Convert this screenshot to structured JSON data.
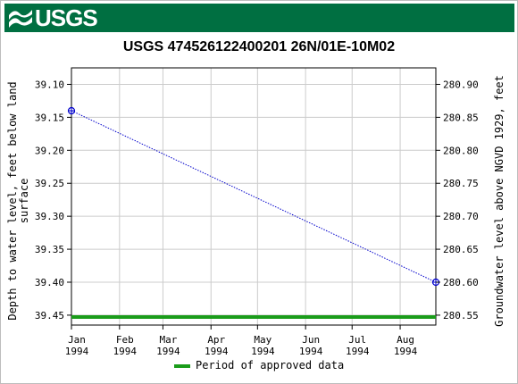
{
  "header": {
    "logo_text": "USGS",
    "brand_color": "#006f41"
  },
  "chart_data": {
    "type": "line",
    "title": "USGS 474526122400201 26N/01E-10M02",
    "ylabel_left": "Depth to water level, feet below land surface",
    "ylabel_left_lines": [
      "Depth to water level, feet below land",
      "surface"
    ],
    "ylabel_right": "Groundwater level above NGVD 1929, feet",
    "y_left_ticks": [
      "39.10",
      "39.15",
      "39.20",
      "39.25",
      "39.30",
      "39.35",
      "39.40",
      "39.45"
    ],
    "y_left_range": [
      39.075,
      39.465
    ],
    "y_left_inverted": true,
    "y_right_ticks": [
      "280.90",
      "280.85",
      "280.80",
      "280.75",
      "280.70",
      "280.65",
      "280.60",
      "280.55"
    ],
    "y_right_range": [
      280.925,
      280.535
    ],
    "x_ticks": [
      {
        "month": "Jan",
        "year": "1994"
      },
      {
        "month": "Feb",
        "year": "1994"
      },
      {
        "month": "Mar",
        "year": "1994"
      },
      {
        "month": "Apr",
        "year": "1994"
      },
      {
        "month": "May",
        "year": "1994"
      },
      {
        "month": "Jun",
        "year": "1994"
      },
      {
        "month": "Jul",
        "year": "1994"
      },
      {
        "month": "Aug",
        "year": "1994"
      }
    ],
    "x_range": [
      "1994-01-01",
      "1994-08-24"
    ],
    "series": [
      {
        "color": "#0000cc",
        "points": [
          {
            "date": "1994-01-01",
            "depth": 39.14
          },
          {
            "date": "1994-08-24",
            "depth": 39.4
          }
        ]
      }
    ],
    "approved_period": {
      "start": "1994-01-01",
      "end": "1994-08-24",
      "color": "#1a9c1a"
    },
    "grid": true,
    "legend": {
      "position": "bottom-center",
      "label": "Period of approved data"
    }
  }
}
